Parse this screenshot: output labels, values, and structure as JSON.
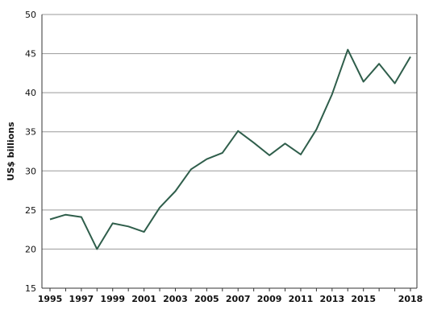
{
  "chart_data": {
    "type": "line",
    "title": "",
    "xlabel": "",
    "ylabel": "US$ billions",
    "ylim": [
      15,
      50
    ],
    "yticks": [
      15,
      20,
      25,
      30,
      35,
      40,
      45,
      50
    ],
    "xlim": [
      1995,
      2018
    ],
    "xticks": [
      1995,
      1997,
      1999,
      2001,
      2003,
      2005,
      2007,
      2009,
      2011,
      2013,
      2015,
      2018
    ],
    "grid": true,
    "series_color": "#2f5e4b",
    "series": [
      {
        "x": [
          1995,
          1996,
          1997,
          1998,
          1999,
          2000,
          2001,
          2002,
          2003,
          2004,
          2005,
          2006,
          2007,
          2008,
          2009,
          2010,
          2011,
          2012,
          2013,
          2014,
          2015,
          2016,
          2017,
          2018
        ],
        "y": [
          23.8,
          24.4,
          24.1,
          20.0,
          23.3,
          22.9,
          22.2,
          25.3,
          27.4,
          30.2,
          31.5,
          32.3,
          35.1,
          33.6,
          32.0,
          33.5,
          32.1,
          35.3,
          39.8,
          45.5,
          41.4,
          43.7,
          41.2,
          44.6
        ]
      }
    ]
  }
}
